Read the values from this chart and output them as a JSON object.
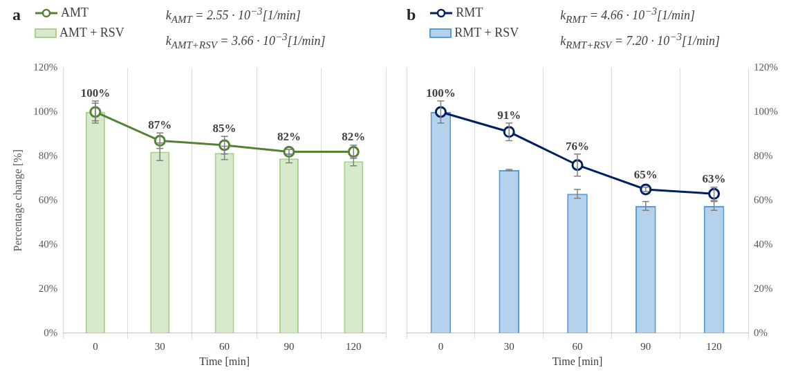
{
  "chart_data": [
    {
      "type": "bar",
      "title": "a",
      "xlabel": "Time [min]",
      "ylabel": "Percentage change [%]",
      "categories": [
        "0",
        "30",
        "60",
        "90",
        "120"
      ],
      "series": [
        {
          "name": "AMT",
          "type": "line",
          "color": "#548235",
          "marker": "circle",
          "values": [
            100,
            87,
            85,
            82,
            82
          ],
          "errors": [
            5,
            3.5,
            4,
            1,
            3
          ],
          "value_labels": [
            "100%",
            "87%",
            "85%",
            "82%",
            "82%"
          ]
        },
        {
          "name": "AMT + RSV",
          "color": "#a9d18e",
          "values": [
            100,
            82,
            81.5,
            79,
            77.7
          ],
          "errors": [
            4,
            4,
            3,
            2,
            2
          ]
        }
      ],
      "ylim": [
        0,
        120
      ],
      "yticks": [
        {
          "value": 0,
          "label": "0%"
        },
        {
          "value": 20,
          "label": "20%"
        },
        {
          "value": 40,
          "label": "40%"
        },
        {
          "value": 60,
          "label": "60%"
        },
        {
          "value": 80,
          "label": "80%"
        },
        {
          "value": 100,
          "label": "100%"
        },
        {
          "value": 120,
          "label": "120%"
        }
      ],
      "grid": "x",
      "legend": "top left",
      "annotations": [
        "k$_{AMT}$ = 2.55 · 10$^{−3}$[1/min]",
        "k$_{AMT+RSV}$ = 3.66 · 10$^{−3}$[1/min]"
      ]
    },
    {
      "type": "bar",
      "title": "b",
      "xlabel": "Time [min]",
      "categories": [
        "0",
        "30",
        "60",
        "90",
        "120"
      ],
      "series": [
        {
          "name": "RMT",
          "type": "line",
          "axis": "y2",
          "color": "#002060",
          "marker": "circle",
          "values": [
            100,
            91,
            76,
            65,
            63
          ],
          "errors": [
            5,
            4,
            5,
            1,
            3
          ],
          "value_labels": [
            "100%",
            "91%",
            "76%",
            "65%",
            "63%"
          ]
        },
        {
          "name": "RMT + RSV",
          "axis": "y2",
          "color": "#5b9bd5",
          "values": [
            100,
            73.7,
            63,
            57.5,
            57.5
          ],
          "errors": [
            null,
            0.3,
            2,
            2,
            2
          ]
        }
      ],
      "y2lim": [
        0,
        120
      ],
      "y2ticks": [
        {
          "value": 0,
          "label": "0%"
        },
        {
          "value": 20,
          "label": "20%"
        },
        {
          "value": 40,
          "label": "40%"
        },
        {
          "value": 60,
          "label": "60%"
        },
        {
          "value": 80,
          "label": "80%"
        },
        {
          "value": 100,
          "label": "100%"
        },
        {
          "value": 120,
          "label": "120%"
        }
      ],
      "grid": "x",
      "legend": "top left",
      "annotations": [
        "k$_{RMT}$ = 4.66 · 10$^{−3}$[1/min]",
        "k$_{RMT+RSV}$ = 7.20 · 10$^{−3}$[1/min]"
      ]
    }
  ]
}
